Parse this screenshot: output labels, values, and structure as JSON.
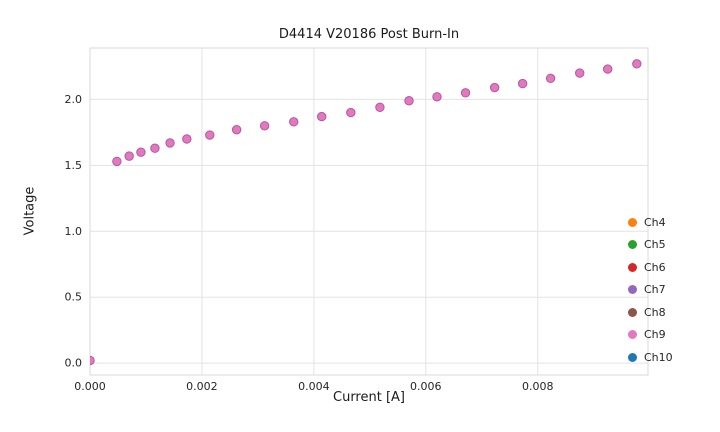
{
  "chart_data": {
    "type": "scatter",
    "title": "D4414 V20186 Post Burn-In",
    "xlabel": "Current [A]",
    "ylabel": "Voltage",
    "x_range": [
      0,
      0.00997
    ],
    "y_range": [
      -0.09,
      2.39
    ],
    "x_ticks": [
      {
        "value": 0.0,
        "label": "0.000"
      },
      {
        "value": 0.002,
        "label": "0.002"
      },
      {
        "value": 0.004,
        "label": "0.004"
      },
      {
        "value": 0.006,
        "label": "0.006"
      },
      {
        "value": 0.008,
        "label": "0.008"
      }
    ],
    "y_ticks": [
      {
        "value": 0.0,
        "label": "0.0"
      },
      {
        "value": 0.5,
        "label": "0.5"
      },
      {
        "value": 1.0,
        "label": "1.0"
      },
      {
        "value": 1.5,
        "label": "1.5"
      },
      {
        "value": 2.0,
        "label": "2.0"
      }
    ],
    "grid": true,
    "grid_color": "#e3e3e3",
    "border_color": "#d9d9d9",
    "background": "#ffffff",
    "legend_position": "lower right",
    "series": [
      {
        "name": "Ch9",
        "color": "#e377c2",
        "edge_color": "#b05a9b",
        "x": [
          0.0,
          0.00048,
          0.0007,
          0.00091,
          0.00116,
          0.00143,
          0.00173,
          0.00214,
          0.00262,
          0.00312,
          0.00364,
          0.00414,
          0.00466,
          0.00518,
          0.0057,
          0.0062,
          0.00671,
          0.00723,
          0.00773,
          0.00823,
          0.00875,
          0.00925,
          0.00977
        ],
        "y": [
          0.02,
          1.53,
          1.57,
          1.6,
          1.63,
          1.67,
          1.7,
          1.73,
          1.77,
          1.8,
          1.83,
          1.87,
          1.9,
          1.94,
          1.99,
          2.02,
          2.05,
          2.09,
          2.12,
          2.16,
          2.2,
          2.23,
          2.27
        ]
      }
    ],
    "legend": [
      {
        "label": "Ch4",
        "color": "#ff7f0e"
      },
      {
        "label": "Ch5",
        "color": "#2ca02c"
      },
      {
        "label": "Ch6",
        "color": "#d62728"
      },
      {
        "label": "Ch7",
        "color": "#9467bd"
      },
      {
        "label": "Ch8",
        "color": "#8c564b"
      },
      {
        "label": "Ch9",
        "color": "#e377c2"
      },
      {
        "label": "Ch10",
        "color": "#1f77b4"
      }
    ]
  }
}
